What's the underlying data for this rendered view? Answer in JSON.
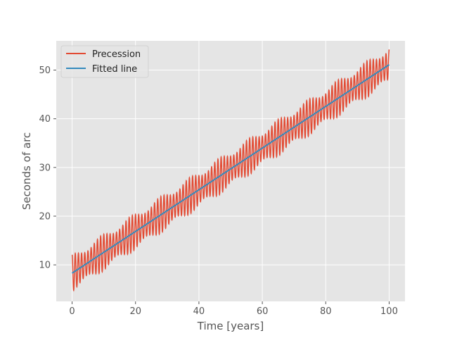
{
  "chart_data": {
    "type": "line",
    "title": "",
    "xlabel": "Time [years]",
    "ylabel": "Seconds of arc",
    "xlim": [
      -5,
      105
    ],
    "ylim": [
      2.5,
      56
    ],
    "xticks": [
      0,
      20,
      40,
      60,
      80,
      100
    ],
    "yticks": [
      10,
      20,
      30,
      40,
      50
    ],
    "grid": true,
    "legend_position": "top-left",
    "series": [
      {
        "name": "Precession",
        "color": "#e24a33",
        "description": "Oscillating signal around a linear trend, roughly 1 cycle per year, amplitude about 4 arcsec",
        "trend": {
          "slope": 0.428,
          "intercept": 8.3
        },
        "oscillation": {
          "amplitude": 4.2,
          "period": 1.0
        },
        "x_range": [
          0,
          100
        ]
      },
      {
        "name": "Fitted line",
        "color": "#348abd",
        "x": [
          0,
          100
        ],
        "y": [
          8.3,
          51.1
        ]
      }
    ]
  }
}
